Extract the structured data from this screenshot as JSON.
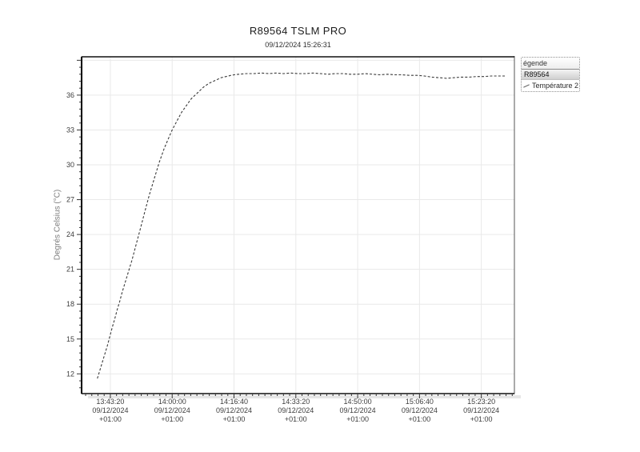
{
  "header": {
    "title": "R89564 TSLM PRO",
    "subtitle": "09/12/2024 15:26:31"
  },
  "legend": {
    "header": "égende",
    "device": "R89564",
    "channel": "Température 2"
  },
  "chart_data": {
    "type": "line",
    "title": "R89564 TSLM PRO",
    "subtitle": "09/12/2024 15:26:31",
    "xlabel": "",
    "ylabel": "Degrés Celsius (°C)",
    "grid": true,
    "legend_position": "top-right-outside",
    "x_date": "09/12/2024",
    "x_tz": "+01:00",
    "x_ticks": [
      "13:43:20",
      "14:00:00",
      "14:16:40",
      "14:33:20",
      "14:50:00",
      "15:06:40",
      "15:23:20"
    ],
    "y_ticks": [
      12,
      15,
      18,
      21,
      24,
      27,
      30,
      33,
      36
    ],
    "ylim": [
      10.3,
      39.3
    ],
    "xlim": [
      "13:35:35",
      "15:32:15"
    ],
    "y_minor": 0.6,
    "x_minor_s": 100,
    "series": [
      {
        "name": "Température 2",
        "color": "#3a3a3a",
        "dashed": true,
        "points": [
          [
            "13:39:50",
            11.6
          ],
          [
            "13:40:30",
            12.3
          ],
          [
            "13:41:10",
            13.0
          ],
          [
            "13:41:50",
            13.7
          ],
          [
            "13:42:30",
            14.4
          ],
          [
            "13:43:10",
            15.2
          ],
          [
            "13:43:50",
            16.0
          ],
          [
            "13:44:30",
            16.7
          ],
          [
            "13:45:10",
            17.5
          ],
          [
            "13:45:50",
            18.2
          ],
          [
            "13:46:30",
            19.0
          ],
          [
            "13:47:10",
            19.7
          ],
          [
            "13:47:50",
            20.4
          ],
          [
            "13:48:30",
            21.1
          ],
          [
            "13:49:10",
            21.8
          ],
          [
            "13:49:50",
            22.6
          ],
          [
            "13:50:30",
            23.4
          ],
          [
            "13:51:10",
            24.2
          ],
          [
            "13:51:50",
            25.0
          ],
          [
            "13:52:30",
            25.8
          ],
          [
            "13:53:10",
            26.6
          ],
          [
            "13:53:50",
            27.4
          ],
          [
            "13:54:30",
            28.1
          ],
          [
            "13:55:10",
            28.8
          ],
          [
            "13:55:50",
            29.5
          ],
          [
            "13:56:30",
            30.2
          ],
          [
            "13:57:10",
            30.8
          ],
          [
            "13:57:50",
            31.4
          ],
          [
            "13:58:30",
            31.9
          ],
          [
            "13:59:10",
            32.4
          ],
          [
            "13:59:50",
            32.9
          ],
          [
            "14:00:30",
            33.3
          ],
          [
            "14:01:10",
            33.7
          ],
          [
            "14:01:50",
            34.1
          ],
          [
            "14:02:30",
            34.5
          ],
          [
            "14:03:10",
            34.8
          ],
          [
            "14:03:50",
            35.1
          ],
          [
            "14:04:30",
            35.4
          ],
          [
            "14:05:10",
            35.7
          ],
          [
            "14:05:50",
            35.9
          ],
          [
            "14:06:30",
            36.1
          ],
          [
            "14:07:10",
            36.3
          ],
          [
            "14:07:50",
            36.5
          ],
          [
            "14:08:30",
            36.7
          ],
          [
            "14:09:10",
            36.85
          ],
          [
            "14:09:50",
            37.0
          ],
          [
            "14:10:30",
            37.1
          ],
          [
            "14:11:10",
            37.2
          ],
          [
            "14:11:50",
            37.3
          ],
          [
            "14:12:30",
            37.4
          ],
          [
            "14:13:10",
            37.5
          ],
          [
            "14:13:50",
            37.55
          ],
          [
            "14:14:30",
            37.6
          ],
          [
            "14:15:10",
            37.65
          ],
          [
            "14:15:50",
            37.7
          ],
          [
            "14:16:40",
            37.75
          ],
          [
            "14:18:00",
            37.8
          ],
          [
            "14:20:00",
            37.85
          ],
          [
            "14:22:00",
            37.85
          ],
          [
            "14:24:00",
            37.9
          ],
          [
            "14:26:00",
            37.85
          ],
          [
            "14:28:00",
            37.9
          ],
          [
            "14:30:00",
            37.85
          ],
          [
            "14:32:00",
            37.9
          ],
          [
            "14:34:00",
            37.85
          ],
          [
            "14:36:00",
            37.85
          ],
          [
            "14:38:00",
            37.9
          ],
          [
            "14:40:00",
            37.85
          ],
          [
            "14:42:00",
            37.8
          ],
          [
            "14:44:00",
            37.85
          ],
          [
            "14:46:00",
            37.85
          ],
          [
            "14:48:00",
            37.8
          ],
          [
            "14:50:00",
            37.8
          ],
          [
            "14:52:00",
            37.85
          ],
          [
            "14:54:00",
            37.8
          ],
          [
            "14:56:00",
            37.75
          ],
          [
            "14:58:00",
            37.8
          ],
          [
            "15:00:00",
            37.75
          ],
          [
            "15:02:00",
            37.75
          ],
          [
            "15:04:00",
            37.7
          ],
          [
            "15:06:00",
            37.7
          ],
          [
            "15:08:00",
            37.65
          ],
          [
            "15:10:00",
            37.55
          ],
          [
            "15:12:00",
            37.5
          ],
          [
            "15:14:00",
            37.45
          ],
          [
            "15:16:00",
            37.5
          ],
          [
            "15:18:00",
            37.55
          ],
          [
            "15:20:00",
            37.55
          ],
          [
            "15:22:00",
            37.6
          ],
          [
            "15:24:00",
            37.6
          ],
          [
            "15:26:00",
            37.65
          ],
          [
            "15:28:00",
            37.65
          ],
          [
            "15:30:00",
            37.65
          ]
        ]
      }
    ]
  }
}
